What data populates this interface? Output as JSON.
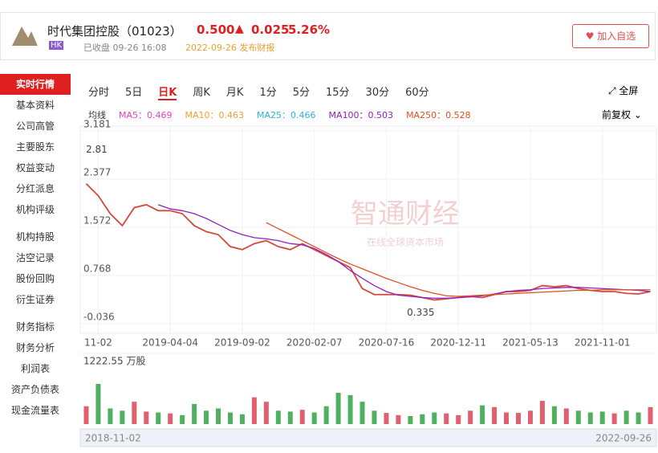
{
  "header": {
    "name": "时代集团控股（01023）",
    "price": "0.500",
    "change": "0.025",
    "pct": "5.26%",
    "market": "HK",
    "status": "已收盘 09-26 16:08",
    "report": "2022-09-26 发布财报",
    "button": "加入自选"
  },
  "sidebar": [
    "实时行情",
    "基本资料",
    "公司高管",
    "主要股东",
    "权益变动",
    "分红派息",
    "机构评级",
    "机构持股",
    "沽空记录",
    "股份回购",
    "衍生证券",
    "财务指标",
    "财务分析",
    "利润表",
    "资产负债表",
    "现金流量表"
  ],
  "tabs": [
    "分时",
    "5日",
    "日K",
    "周K",
    "月K",
    "1分",
    "5分",
    "15分",
    "30分",
    "60分"
  ],
  "fullscreen": "全屏",
  "ma_label": "均线",
  "ma": [
    {
      "label": "MA5：0.469",
      "color": "#e040c0"
    },
    {
      "label": "MA10：0.463",
      "color": "#f0a030"
    },
    {
      "label": "MA25：0.466",
      "color": "#30b0e0"
    },
    {
      "label": "MA100：0.503",
      "color": "#9020c0"
    },
    {
      "label": "MA250：0.528",
      "color": "#e05020"
    }
  ],
  "adjust": "前复权",
  "watermark": [
    "智通财经",
    "在线全球资本市场"
  ],
  "chart_data": {
    "type": "line",
    "categories": [
      null,
      "11-02",
      null,
      null,
      null,
      null,
      null,
      "2019-04-04",
      null,
      null,
      null,
      null,
      null,
      "2019-09-02",
      null,
      null,
      null,
      null,
      null,
      "2020-02-07",
      null,
      null,
      null,
      null,
      null,
      "2020-07-16",
      null,
      null,
      null,
      null,
      null,
      "2020-12-11",
      null,
      null,
      null,
      null,
      null,
      "2021-05-13",
      null,
      null,
      null,
      null,
      null,
      "2021-11-01",
      null,
      null,
      null,
      null
    ],
    "series": [
      {
        "color": "#d24a3c",
        "values": [
          2.3,
          2.1,
          1.8,
          1.6,
          1.9,
          1.95,
          1.85,
          1.85,
          1.8,
          1.6,
          1.5,
          1.45,
          1.25,
          1.2,
          1.3,
          1.35,
          1.25,
          1.2,
          1.3,
          1.2,
          1.1,
          1.0,
          0.9,
          0.55,
          0.45,
          0.45,
          0.45,
          0.44,
          0.4,
          0.36,
          0.38,
          0.4,
          0.42,
          0.4,
          0.45,
          0.5,
          0.5,
          0.52,
          0.6,
          0.58,
          0.6,
          0.55,
          0.52,
          0.5,
          0.5,
          0.47,
          0.46,
          0.5
        ]
      },
      {
        "color": "#9020c0",
        "values": [
          null,
          null,
          null,
          null,
          null,
          null,
          1.95,
          1.88,
          1.85,
          1.8,
          1.72,
          1.62,
          1.52,
          1.45,
          1.4,
          1.38,
          1.35,
          1.3,
          1.28,
          1.22,
          1.12,
          1.0,
          0.85,
          0.72,
          0.6,
          0.5,
          0.44,
          0.42,
          0.4,
          0.39,
          0.39,
          0.4,
          0.41,
          0.43,
          0.46,
          0.5,
          0.52,
          0.53,
          0.55,
          0.56,
          0.57,
          0.57,
          0.56,
          0.55,
          0.54,
          0.53,
          0.52,
          0.5
        ]
      },
      {
        "color": "#e05020",
        "values": [
          null,
          null,
          null,
          null,
          null,
          null,
          null,
          null,
          null,
          null,
          null,
          null,
          null,
          null,
          null,
          1.65,
          1.55,
          1.45,
          1.35,
          1.25,
          1.15,
          1.05,
          0.96,
          0.88,
          0.8,
          0.72,
          0.65,
          0.58,
          0.52,
          0.47,
          0.43,
          0.42,
          0.43,
          0.44,
          0.45,
          0.46,
          0.47,
          0.48,
          0.49,
          0.5,
          0.51,
          0.52,
          0.52,
          0.53,
          0.53,
          0.53,
          0.53,
          0.53
        ]
      }
    ],
    "ylim": [
      -0.036,
      3.181
    ],
    "yticks": [
      -0.036,
      0.768,
      1.572,
      2.377,
      3.181
    ],
    "annotations": [
      {
        "index": 1,
        "value": 2.81
      },
      {
        "index": 28,
        "value": 0.335
      }
    ],
    "volume": {
      "label": "1222.55 万股",
      "ylim": [
        0,
        1222.55
      ],
      "values": [
        400,
        900,
        350,
        300,
        500,
        280,
        260,
        240,
        200,
        450,
        300,
        350,
        260,
        220,
        600,
        500,
        300,
        280,
        320,
        260,
        400,
        700,
        650,
        500,
        300,
        250,
        200,
        180,
        220,
        260,
        240,
        200,
        300,
        420,
        380,
        260,
        250,
        300,
        520,
        400,
        350,
        300,
        260,
        280,
        240,
        300,
        260,
        380
      ]
    },
    "range": [
      "2018-11-02",
      "2022-09-26"
    ]
  }
}
